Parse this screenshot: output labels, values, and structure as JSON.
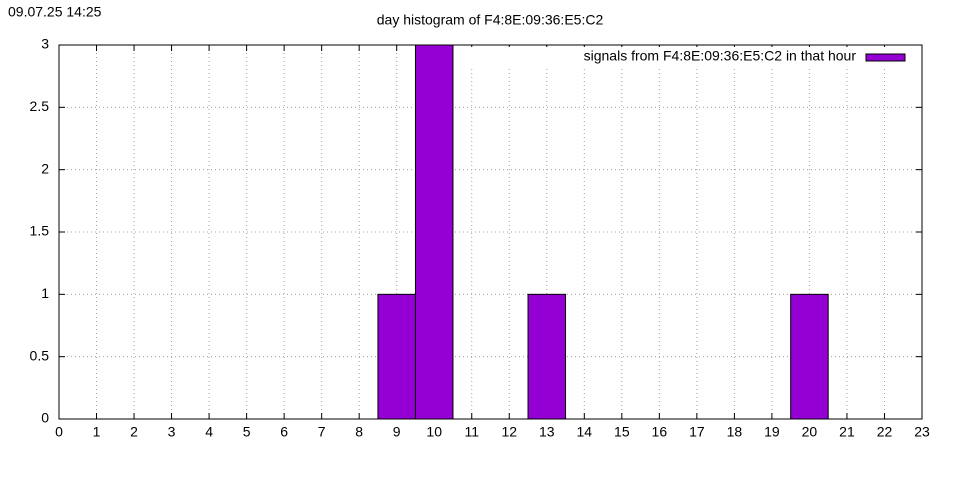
{
  "chart_data": {
    "type": "bar",
    "timestamp": "09.07.25 14:25",
    "title": "day histogram of F4:8E:09:36:E5:C2",
    "x": [
      9,
      10,
      13,
      20
    ],
    "bar_width": 1,
    "series": [
      {
        "name": "signals from F4:8E:09:36:E5:C2 in that hour",
        "color": "#9400d3",
        "values": [
          1,
          3,
          1,
          1
        ]
      }
    ],
    "xlim": [
      0,
      23
    ],
    "xticks": [
      0,
      1,
      2,
      3,
      4,
      5,
      6,
      7,
      8,
      9,
      10,
      11,
      12,
      13,
      14,
      15,
      16,
      17,
      18,
      19,
      20,
      21,
      22,
      23
    ],
    "ylim": [
      0,
      3
    ],
    "yticks": [
      0,
      0.5,
      1,
      1.5,
      2,
      2.5,
      3
    ],
    "grid": true,
    "legend": "top-right"
  }
}
